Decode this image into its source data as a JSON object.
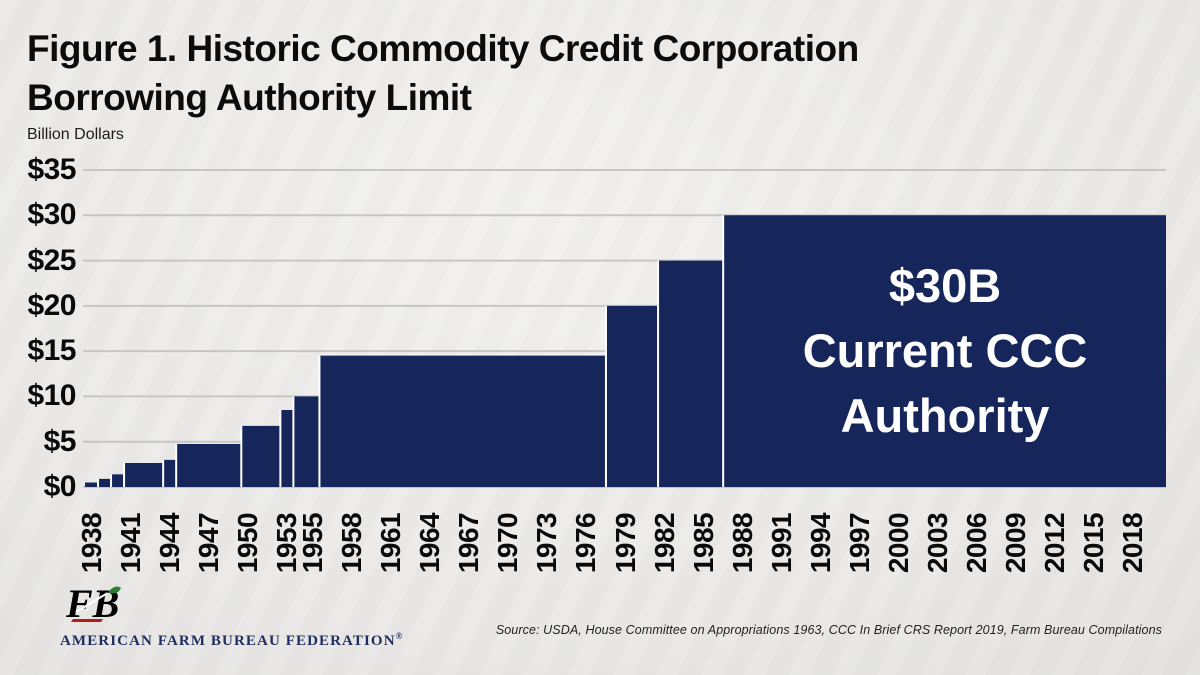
{
  "title": {
    "line1": "Figure 1. Historic Commodity Credit Corporation",
    "line2": "Borrowing Authority Limit"
  },
  "chart_data": {
    "type": "area",
    "title": "Figure 1. Historic Commodity Credit Corporation Borrowing Authority Limit",
    "ylabel": "Billion Dollars",
    "ylim": [
      0,
      35
    ],
    "ytick_step": 5,
    "yticks": [
      "$0",
      "$5",
      "$10",
      "$15",
      "$20",
      "$25",
      "$30",
      "$35"
    ],
    "x_start": 1938,
    "x_end": 2021,
    "xticks": [
      1938,
      1941,
      1944,
      1947,
      1950,
      1953,
      1955,
      1958,
      1961,
      1964,
      1967,
      1970,
      1973,
      1976,
      1979,
      1982,
      1985,
      1988,
      1991,
      1994,
      1997,
      2000,
      2003,
      2006,
      2009,
      2012,
      2015,
      2018
    ],
    "steps": [
      {
        "year": 1938,
        "value": 0.5
      },
      {
        "year": 1939,
        "value": 0.9
      },
      {
        "year": 1940,
        "value": 1.4
      },
      {
        "year": 1941,
        "value": 2.65
      },
      {
        "year": 1944,
        "value": 3.0
      },
      {
        "year": 1945,
        "value": 4.75
      },
      {
        "year": 1950,
        "value": 6.75
      },
      {
        "year": 1953,
        "value": 8.5
      },
      {
        "year": 1954,
        "value": 10.0
      },
      {
        "year": 1956,
        "value": 14.5
      },
      {
        "year": 1978,
        "value": 20.0
      },
      {
        "year": 1982,
        "value": 25.0
      },
      {
        "year": 1987,
        "value": 30.0
      }
    ],
    "annotation": [
      "$30B",
      "Current CCC",
      "Authority"
    ],
    "bar_color": "#16265a",
    "grid_color": "#c7c6c4",
    "annotation_color": "#ffffff",
    "legend": "none",
    "grid": "horizontal"
  },
  "footer": {
    "org": "AMERICAN FARM BUREAU FEDERATION",
    "reg": "®",
    "source": "Source: USDA, House Committee on Appropriations 1963, CCC In Brief CRS Report 2019, Farm Bureau Compilations"
  }
}
